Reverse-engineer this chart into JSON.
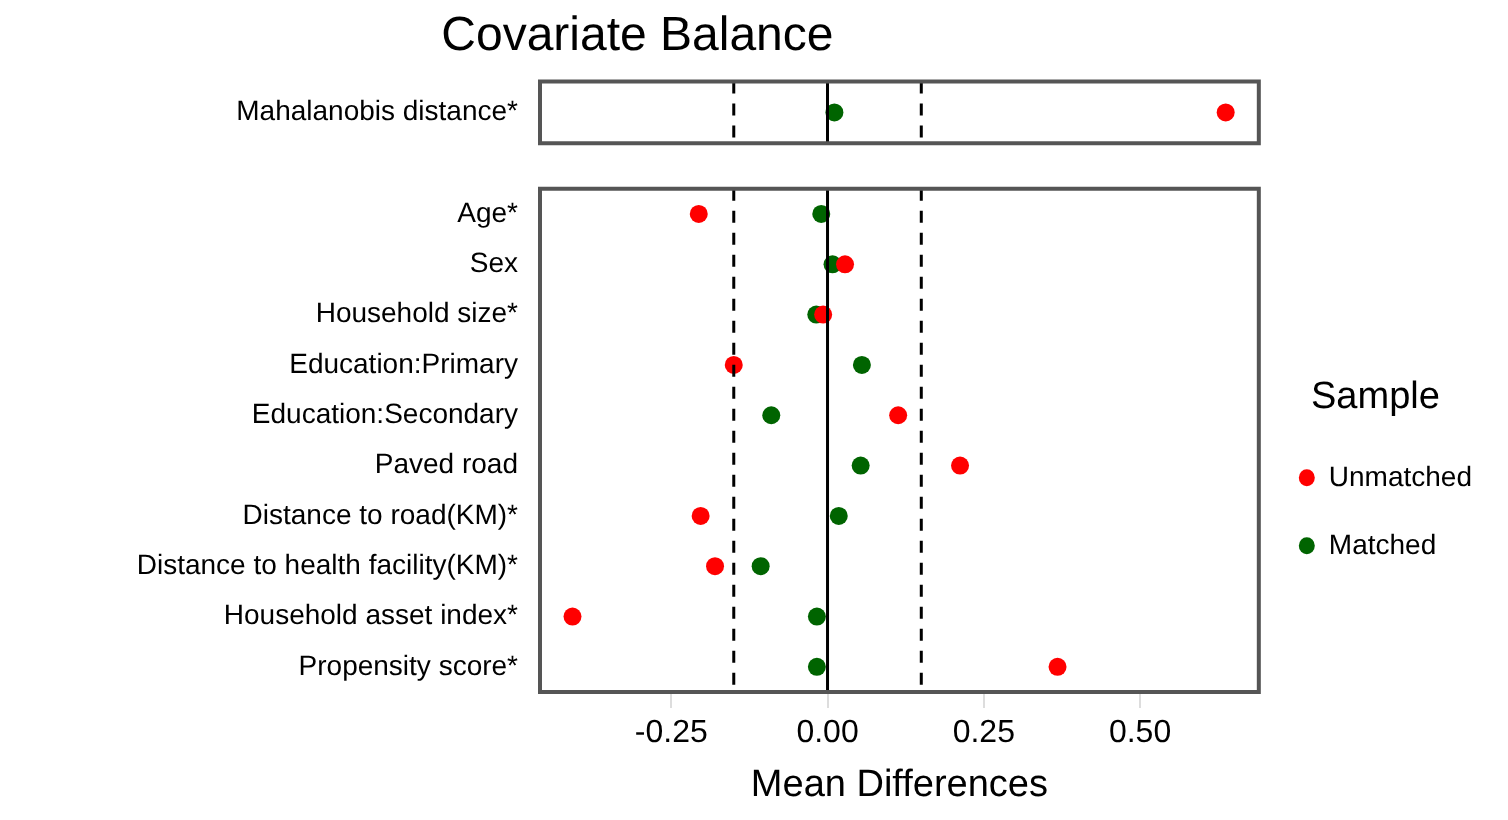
{
  "chart_data": [
    {
      "type": "scatter",
      "title": "Covariate Balance",
      "categories": [
        "Mahalanobis distance*"
      ],
      "series": [
        {
          "color": "#ff0000",
          "values": [
            0.637
          ]
        },
        {
          "color": "#006400",
          "values": [
            0.011
          ]
        }
      ],
      "xlim": [
        -0.46,
        0.69
      ],
      "ref_lines": [
        {
          "axis": "x",
          "value": -0.15,
          "line_style": "dashed"
        },
        {
          "axis": "x",
          "value": 0,
          "line_style": "solid"
        },
        {
          "axis": "x",
          "value": 0.15,
          "line_style": "dashed"
        }
      ],
      "orientation": "horizontal",
      "tick_labels": "y",
      "grid": false,
      "marker": "circle"
    },
    {
      "type": "scatter",
      "xlabel": "Mean Differences",
      "legend_title": "Sample",
      "categories": [
        "Age*",
        "Sex",
        "Household size*",
        "Education:Primary",
        "Education:Secondary",
        "Paved road",
        "Distance to road(KM)*",
        "Distance to health facility(KM)*",
        "Household asset index*",
        "Propensity score*"
      ],
      "series": [
        {
          "name": "Unmatched",
          "color": "#ff0000",
          "values": [
            -0.206,
            0.028,
            -0.007,
            -0.15,
            0.113,
            0.212,
            -0.203,
            -0.18,
            -0.408,
            0.368
          ]
        },
        {
          "name": "Matched",
          "color": "#006400",
          "values": [
            -0.01,
            0.008,
            -0.018,
            0.055,
            -0.09,
            0.053,
            0.018,
            -0.107,
            -0.017,
            -0.017
          ]
        }
      ],
      "xlim": [
        -0.46,
        0.69
      ],
      "xticks": [
        {
          "value": -0.25,
          "label": "-0.25"
        },
        {
          "value": 0,
          "label": "0.00"
        },
        {
          "value": 0.25,
          "label": "0.25"
        },
        {
          "value": 0.5,
          "label": "0.50"
        }
      ],
      "ref_lines": [
        {
          "axis": "x",
          "value": -0.15,
          "line_style": "dashed"
        },
        {
          "axis": "x",
          "value": 0,
          "line_style": "solid"
        },
        {
          "axis": "x",
          "value": 0.15,
          "line_style": "dashed"
        }
      ],
      "orientation": "horizontal",
      "grid": false,
      "legend": "right",
      "marker": "circle"
    }
  ]
}
